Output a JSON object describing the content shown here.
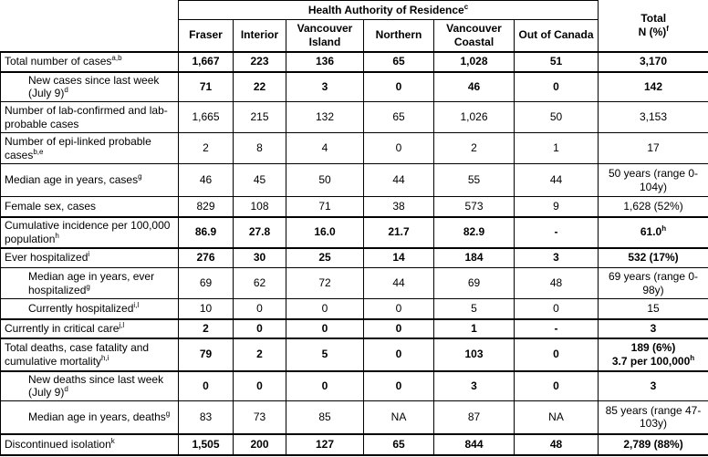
{
  "table": {
    "header": {
      "group": {
        "label": "Health Authority of Residence",
        "sup": "c"
      },
      "columns": [
        "Fraser",
        "Interior",
        "Vancouver Island",
        "Northern",
        "Vancouver Coastal",
        "Out of Canada"
      ],
      "total": {
        "line1": "Total",
        "line2": "N (%)",
        "sup": "f"
      }
    },
    "rows": [
      {
        "label": "Total number of cases",
        "sup": "a,b",
        "bold": true,
        "indent": false,
        "values": [
          "1,667",
          "223",
          "136",
          "65",
          "1,028",
          "51"
        ],
        "total": [
          {
            "text": "3,170",
            "sup": ""
          }
        ]
      },
      {
        "label": "New cases since last week (July 9)",
        "sup": "d",
        "bold": true,
        "indent": true,
        "values": [
          "71",
          "22",
          "3",
          "0",
          "46",
          "0"
        ],
        "total": [
          {
            "text": "142",
            "sup": ""
          }
        ]
      },
      {
        "label": "Number of lab-confirmed and lab-probable cases",
        "sup": "",
        "bold": false,
        "indent": false,
        "values": [
          "1,665",
          "215",
          "132",
          "65",
          "1,026",
          "50"
        ],
        "total": [
          {
            "text": "3,153",
            "sup": ""
          }
        ]
      },
      {
        "label": "Number of epi-linked probable cases",
        "sup": "b,e",
        "bold": false,
        "indent": false,
        "values": [
          "2",
          "8",
          "4",
          "0",
          "2",
          "1"
        ],
        "total": [
          {
            "text": "17",
            "sup": ""
          }
        ]
      },
      {
        "label": "Median age in years, cases",
        "sup": "g",
        "bold": false,
        "indent": false,
        "values": [
          "46",
          "45",
          "50",
          "44",
          "55",
          "44"
        ],
        "total": [
          {
            "text": "50 years (range 0-104y)",
            "sup": ""
          }
        ]
      },
      {
        "label": "Female sex, cases",
        "sup": "",
        "bold": false,
        "indent": false,
        "values": [
          "829",
          "108",
          "71",
          "38",
          "573",
          "9"
        ],
        "total": [
          {
            "text": "1,628 (52%)",
            "sup": ""
          }
        ]
      },
      {
        "label": "Cumulative incidence per 100,000 population",
        "sup": "h",
        "bold": true,
        "indent": false,
        "values": [
          "86.9",
          "27.8",
          "16.0",
          "21.7",
          "82.9",
          "-"
        ],
        "total": [
          {
            "text": "61.0",
            "sup": "h"
          }
        ]
      },
      {
        "label": "Ever hospitalized",
        "sup": "i",
        "bold": true,
        "indent": false,
        "values": [
          "276",
          "30",
          "25",
          "14",
          "184",
          "3"
        ],
        "total": [
          {
            "text": "532 (17%)",
            "sup": ""
          }
        ]
      },
      {
        "label": "Median age in years, ever hospitalized",
        "sup": "g",
        "bold": false,
        "indent": true,
        "values": [
          "69",
          "62",
          "72",
          "44",
          "69",
          "48"
        ],
        "total": [
          {
            "text": "69 years (range 0-98y)",
            "sup": ""
          }
        ]
      },
      {
        "label": "Currently hospitalized",
        "sup": "i,l",
        "bold": false,
        "indent": true,
        "values": [
          "10",
          "0",
          "0",
          "0",
          "5",
          "0"
        ],
        "total": [
          {
            "text": "15",
            "sup": ""
          }
        ]
      },
      {
        "label": "Currently in critical care",
        "sup": "j,l",
        "bold": true,
        "indent": false,
        "values": [
          "2",
          "0",
          "0",
          "0",
          "1",
          "-"
        ],
        "total": [
          {
            "text": "3",
            "sup": ""
          }
        ]
      },
      {
        "label": "Total deaths, case fatality and cumulative mortality",
        "sup": "h,i",
        "bold": true,
        "indent": false,
        "values": [
          "79",
          "2",
          "5",
          "0",
          "103",
          "0"
        ],
        "total": [
          {
            "text": "189 (6%)",
            "sup": ""
          },
          {
            "text": "3.7 per 100,000",
            "sup": "h"
          }
        ]
      },
      {
        "label": "New deaths since last week (July 9)",
        "sup": "d",
        "bold": true,
        "indent": true,
        "values": [
          "0",
          "0",
          "0",
          "0",
          "3",
          "0"
        ],
        "total": [
          {
            "text": "3",
            "sup": ""
          }
        ]
      },
      {
        "label": "Median age in years, deaths",
        "sup": "g",
        "bold": false,
        "indent": true,
        "values": [
          "83",
          "73",
          "85",
          "NA",
          "87",
          "NA"
        ],
        "total": [
          {
            "text": "85 years (range 47-103y)",
            "sup": ""
          }
        ]
      },
      {
        "label": "Discontinued isolation",
        "sup": "k",
        "bold": true,
        "indent": false,
        "values": [
          "1,505",
          "200",
          "127",
          "65",
          "844",
          "48"
        ],
        "total": [
          {
            "text": "2,789 (88%)",
            "sup": ""
          }
        ]
      }
    ]
  }
}
